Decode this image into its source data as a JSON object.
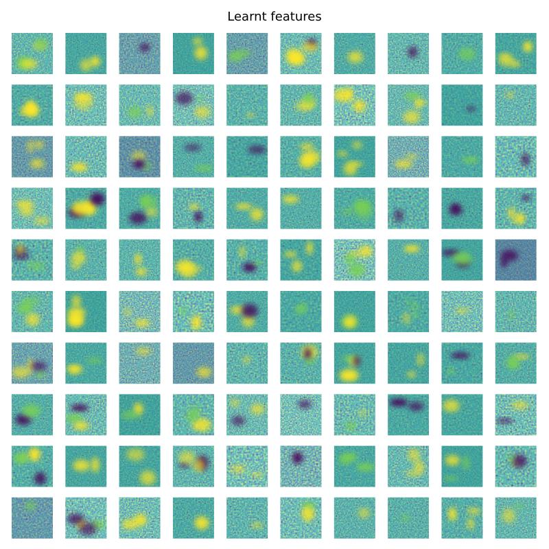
{
  "title": "Learnt features"
}
